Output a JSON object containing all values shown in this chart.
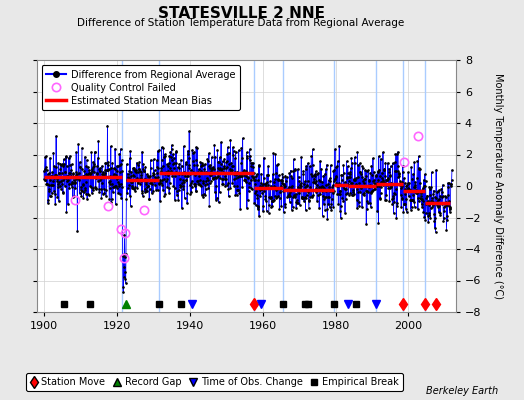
{
  "title": "STATESVILLE 2 NNE",
  "subtitle": "Difference of Station Temperature Data from Regional Average",
  "ylabel": "Monthly Temperature Anomaly Difference (°C)",
  "xlim": [
    1898,
    2013
  ],
  "ylim": [
    -8,
    8
  ],
  "yticks": [
    -8,
    -6,
    -4,
    -2,
    0,
    2,
    4,
    6,
    8
  ],
  "xticks": [
    1900,
    1920,
    1940,
    1960,
    1980,
    2000
  ],
  "background_color": "#e8e8e8",
  "plot_bg_color": "#ffffff",
  "grid_color": "#d0d0d0",
  "seed": 42,
  "segments": [
    {
      "start": 1900.0,
      "end": 1921.5,
      "bias": 0.55
    },
    {
      "start": 1922.5,
      "end": 1931.5,
      "bias": 0.4
    },
    {
      "start": 1931.5,
      "end": 1957.5,
      "bias": 0.85
    },
    {
      "start": 1957.5,
      "end": 1965.5,
      "bias": -0.15
    },
    {
      "start": 1965.5,
      "end": 1979.5,
      "bias": -0.25
    },
    {
      "start": 1979.5,
      "end": 1983.5,
      "bias": 0.05
    },
    {
      "start": 1983.5,
      "end": 1991.0,
      "bias": 0.0
    },
    {
      "start": 1991.0,
      "end": 1998.5,
      "bias": 0.1
    },
    {
      "start": 1998.5,
      "end": 2004.5,
      "bias": -0.3
    },
    {
      "start": 2004.5,
      "end": 2011.5,
      "bias": -1.1
    }
  ],
  "break_lines": [
    1921.5,
    1931.5,
    1957.5,
    1965.5,
    1979.5,
    1991.0,
    1998.5,
    2004.5
  ],
  "station_moves": [
    1957.5,
    1998.5,
    2004.5,
    2007.5
  ],
  "record_gaps": [
    1922.5
  ],
  "obs_changes": [
    1940.5,
    1959.5,
    1983.5,
    1991.0
  ],
  "empirical_breaks": [
    1905.5,
    1912.5,
    1931.5,
    1937.5,
    1965.5,
    1971.5,
    1972.5,
    1979.5,
    1985.5
  ],
  "qc_failed": [
    [
      1908.5,
      -0.9
    ],
    [
      1917.5,
      -1.3
    ],
    [
      1921.0,
      -2.7
    ],
    [
      1922.3,
      -3.0
    ],
    [
      1922.0,
      -4.6
    ],
    [
      1927.5,
      -1.5
    ],
    [
      1998.8,
      1.5
    ],
    [
      2002.5,
      3.2
    ]
  ]
}
